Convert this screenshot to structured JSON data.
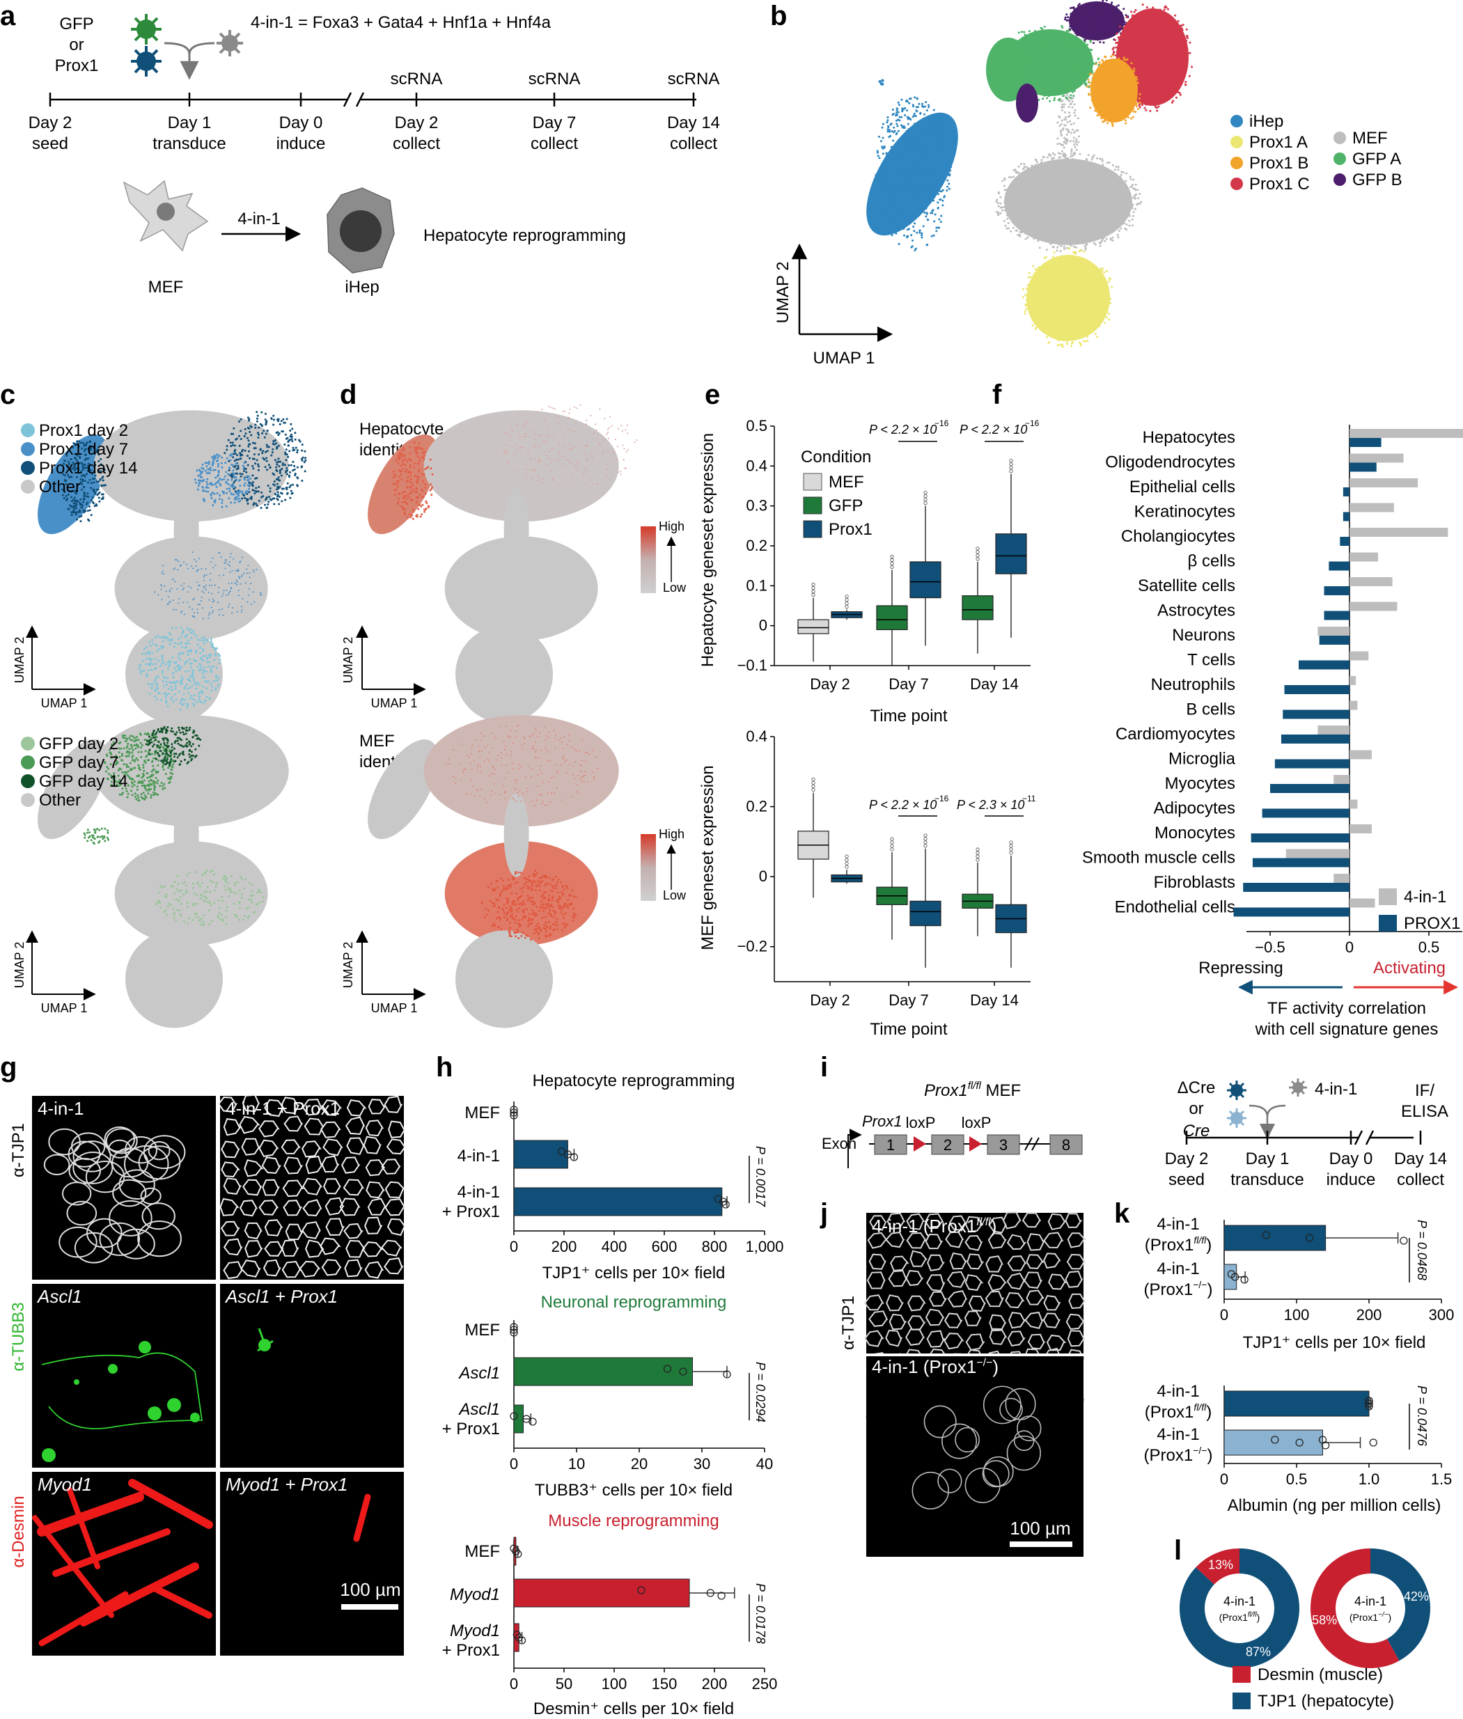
{
  "panel_letters": [
    "a",
    "b",
    "c",
    "d",
    "e",
    "f",
    "g",
    "h",
    "i",
    "j",
    "k",
    "l"
  ],
  "panel_a": {
    "virus_choice": [
      "GFP",
      "or",
      "Prox1"
    ],
    "formula": "4-in-1 = Foxa3 + Gata4 + Hnf1a + Hnf4a",
    "timeline_days": [
      "Day 2",
      "Day 1",
      "Day 0",
      "Day 2",
      "Day 7",
      "Day 14"
    ],
    "timeline_events": [
      "seed",
      "transduce",
      "induce",
      "collect",
      "collect",
      "collect"
    ],
    "scrna_label": "scRNA",
    "arrow_label": "4-in-1",
    "cell_from": "MEF",
    "cell_to": "iHep",
    "process": "Hepatocyte reprogramming"
  },
  "panel_b": {
    "legend": [
      {
        "label": "iHep",
        "color": "#2f86c0"
      },
      {
        "label": "Prox1 A",
        "color": "#ece773"
      },
      {
        "label": "Prox1 B",
        "color": "#f2a32b"
      },
      {
        "label": "Prox1 C",
        "color": "#d2384a"
      },
      {
        "label": "MEF",
        "color": "#bdbdbd"
      },
      {
        "label": "GFP A",
        "color": "#4fb36a"
      },
      {
        "label": "GFP B",
        "color": "#4b1f6b"
      }
    ],
    "axis_y": "UMAP 2",
    "axis_x": "UMAP 1"
  },
  "panel_c": {
    "top_legend": [
      {
        "label": "Prox1 day 2",
        "color": "#7ec4d8"
      },
      {
        "label": "Prox1 day 7",
        "color": "#4a90c8"
      },
      {
        "label": "Prox1 day 14",
        "color": "#0f4f78"
      },
      {
        "label": "Other",
        "color": "#c8c8c8"
      }
    ],
    "bottom_legend": [
      {
        "label": "GFP day 2",
        "color": "#9cc59c"
      },
      {
        "label": "GFP day 7",
        "color": "#4b9a55"
      },
      {
        "label": "GFP day 14",
        "color": "#11522a"
      },
      {
        "label": "Other",
        "color": "#c8c8c8"
      }
    ],
    "axis_y": "UMAP 2",
    "axis_x": "UMAP 1"
  },
  "panel_d": {
    "top_title": [
      "Hepatocyte",
      "identity"
    ],
    "bottom_title": [
      "MEF",
      "identity"
    ],
    "scale_high": "High",
    "scale_low": "Low",
    "axis_y": "UMAP 2",
    "axis_x": "UMAP 1"
  },
  "panel_e": {
    "legend_title": "Condition",
    "conditions": [
      {
        "label": "MEF",
        "color": "#d9d9d9"
      },
      {
        "label": "GFP",
        "color": "#1f7a3a"
      },
      {
        "label": "Prox1",
        "color": "#0f4f78"
      }
    ],
    "xlabel": "Time point",
    "categories": [
      "Day 2",
      "Day 7",
      "Day 14"
    ],
    "top_ylabel": "Hepatocyte geneset expression",
    "top_ticks": [
      "0.5",
      "0.4",
      "0.3",
      "0.2",
      "0.1",
      "0",
      "−0.1"
    ],
    "top_p": [
      "P < 2.2 × 10",
      "−16",
      "P < 2.2 × 10",
      "−16"
    ],
    "bottom_ylabel": "MEF geneset expression",
    "bottom_ticks": [
      "0.4",
      "0.2",
      "0",
      "−0.2"
    ],
    "bottom_p": [
      "P < 2.2 × 10",
      "−16",
      "P < 2.3 × 10",
      "−11"
    ]
  },
  "panel_f": {
    "categories": [
      "Hepatocytes",
      "Oligodendrocytes",
      "Epithelial cells",
      "Keratinocytes",
      "Cholangiocytes",
      "β cells",
      "Satellite cells",
      "Astrocytes",
      "Neurons",
      "T cells",
      "Neutrophils",
      "B cells",
      "Cardiomyocytes",
      "Microglia",
      "Myocytes",
      "Adipocytes",
      "Monocytes",
      "Smooth muscle cells",
      "Fibroblasts",
      "Endothelial cells"
    ],
    "ticks": [
      "−0.5",
      "0",
      "0.5"
    ],
    "legend": [
      {
        "label": "4-in-1",
        "color": "#bdbdbd"
      },
      {
        "label": "PROX1",
        "color": "#0f4f78"
      }
    ],
    "repressing": "Repressing",
    "activating": "Activating",
    "xlabel": [
      "TF activity correlation",
      "with cell signature genes"
    ]
  },
  "panel_g": {
    "row_labels": [
      "α-TJP1",
      "α-TUBB3",
      "α-Desmin"
    ],
    "tiles": [
      "4-in-1",
      "4-in-1 + Prox1",
      "Ascl1",
      "Ascl1 + Prox1",
      "Myod1",
      "Myod1 + Prox1"
    ],
    "scale": "100 µm"
  },
  "panel_h": {
    "hep_title": "Hepatocyte reprogramming",
    "hep_rows": [
      "MEF",
      "4-in-1",
      "4-in-1",
      "+ Prox1"
    ],
    "hep_ticks": [
      "0",
      "200",
      "400",
      "600",
      "800",
      "1,000"
    ],
    "hep_xlabel": "TJP1⁺ cells per 10× field",
    "hep_p": "P = 0.0017",
    "neu_title": "Neuronal reprogramming",
    "neu_rows": [
      "MEF",
      "Ascl1",
      "Ascl1",
      "+ Prox1"
    ],
    "neu_ticks": [
      "0",
      "10",
      "20",
      "30",
      "40"
    ],
    "neu_xlabel": "TUBB3⁺ cells per 10× field",
    "neu_p": "P = 0.0294",
    "mus_title": "Muscle reprogramming",
    "mus_rows": [
      "MEF",
      "Myod1",
      "Myod1",
      "+ Prox1"
    ],
    "mus_ticks": [
      "0",
      "50",
      "100",
      "150",
      "200",
      "250"
    ],
    "mus_xlabel": "Desmin⁺ cells per 10× field",
    "mus_p": "P = 0.0178"
  },
  "panel_i": {
    "title": "Prox1",
    "title_sup": "fl/fl",
    "title_suffix": " MEF",
    "gene": "Prox1",
    "exon_label": "Exon",
    "exons": [
      "1",
      "2",
      "3",
      "8"
    ],
    "loxp": "loxP",
    "virus": [
      "ΔCre",
      "or",
      "Cre"
    ],
    "cocktail": "4-in-1",
    "readout": [
      "IF/",
      "ELISA"
    ],
    "timeline_days": [
      "Day 2",
      "Day 1",
      "Day 0",
      "Day 14"
    ],
    "timeline_events": [
      "seed",
      "transduce",
      "induce",
      "collect"
    ]
  },
  "panel_j": {
    "row_label": "α-TJP1",
    "tiles": [
      "4-in-1 (Prox1",
      "4-in-1 (Prox1"
    ],
    "tile_sups": [
      "fl/fl",
      "−/−"
    ],
    "scale": "100 µm"
  },
  "panel_k": {
    "rows": [
      "4-in-1",
      "(Prox1",
      "4-in-1",
      "(Prox1"
    ],
    "row_sups": [
      "fl/fl",
      "−/−"
    ],
    "top_ticks": [
      "0",
      "100",
      "200",
      "300"
    ],
    "top_xlabel": "TJP1⁺ cells per 10× field",
    "top_p": "P = 0.0468",
    "bottom_ticks": [
      "0",
      "0.5",
      "1.0",
      "1.5"
    ],
    "bottom_xlabel": "Albumin (ng per million cells)",
    "bottom_p": "P = 0.0476"
  },
  "panel_l": {
    "donuts": [
      {
        "label": "4-in-1",
        "sub": "(Prox1",
        "sup": "fl/fl",
        "desmin": 13,
        "tjp1": 87,
        "desmin_text": "13%",
        "tjp1_text": "87%"
      },
      {
        "label": "4-in-1",
        "sub": "(Prox1",
        "sup": "−/−",
        "desmin": 58,
        "tjp1": 42,
        "desmin_text": "58%",
        "tjp1_text": "42%"
      }
    ],
    "legend": [
      {
        "label": "Desmin (muscle)",
        "color": "#c8202f"
      },
      {
        "label": "TJP1 (hepatocyte)",
        "color": "#0f4f78"
      }
    ]
  },
  "chart_data": [
    {
      "type": "box",
      "id": "e-top",
      "ylabel": "Hepatocyte geneset expression",
      "xlabel": "Time point",
      "categories": [
        "Day 2",
        "Day 7",
        "Day 14"
      ],
      "ylim": [
        -0.1,
        0.5
      ],
      "series": [
        {
          "name": "MEF",
          "boxes": [
            {
              "x": "Day 2",
              "q1": -0.02,
              "median": -0.005,
              "q3": 0.015,
              "lo": -0.09,
              "hi": 0.07
            }
          ]
        },
        {
          "name": "GFP",
          "boxes": [
            {
              "x": "Day 7",
              "q1": -0.01,
              "median": 0.015,
              "q3": 0.05,
              "lo": -0.1,
              "hi": 0.14
            },
            {
              "x": "Day 14",
              "q1": 0.015,
              "median": 0.04,
              "q3": 0.075,
              "lo": -0.07,
              "hi": 0.16
            }
          ]
        },
        {
          "name": "Prox1",
          "boxes": [
            {
              "x": "Day 2",
              "q1": 0.02,
              "median": 0.028,
              "q3": 0.035,
              "lo": 0.015,
              "hi": 0.04
            },
            {
              "x": "Day 7",
              "q1": 0.07,
              "median": 0.11,
              "q3": 0.16,
              "lo": -0.05,
              "hi": 0.3
            },
            {
              "x": "Day 14",
              "q1": 0.13,
              "median": 0.175,
              "q3": 0.23,
              "lo": -0.03,
              "hi": 0.38
            }
          ]
        }
      ]
    },
    {
      "type": "box",
      "id": "e-bottom",
      "ylabel": "MEF geneset expression",
      "xlabel": "Time point",
      "categories": [
        "Day 2",
        "Day 7",
        "Day 14"
      ],
      "ylim": [
        -0.3,
        0.4
      ],
      "series": [
        {
          "name": "MEF",
          "boxes": [
            {
              "x": "Day 2",
              "q1": 0.05,
              "median": 0.09,
              "q3": 0.13,
              "lo": -0.06,
              "hi": 0.24
            }
          ]
        },
        {
          "name": "GFP",
          "boxes": [
            {
              "x": "Day 7",
              "q1": -0.08,
              "median": -0.055,
              "q3": -0.03,
              "lo": -0.18,
              "hi": 0.07
            },
            {
              "x": "Day 14",
              "q1": -0.09,
              "median": -0.07,
              "q3": -0.05,
              "lo": -0.17,
              "hi": 0.04
            }
          ]
        },
        {
          "name": "Prox1",
          "boxes": [
            {
              "x": "Day 2",
              "q1": -0.015,
              "median": -0.005,
              "q3": 0.005,
              "lo": -0.02,
              "hi": 0.02
            },
            {
              "x": "Day 7",
              "q1": -0.14,
              "median": -0.1,
              "q3": -0.07,
              "lo": -0.26,
              "hi": 0.08
            },
            {
              "x": "Day 14",
              "q1": -0.16,
              "median": -0.12,
              "q3": -0.08,
              "lo": -0.26,
              "hi": 0.06
            }
          ]
        }
      ]
    },
    {
      "type": "bar",
      "id": "f",
      "orientation": "horizontal",
      "categories": [
        "Hepatocytes",
        "Oligodendrocytes",
        "Epithelial cells",
        "Keratinocytes",
        "Cholangiocytes",
        "β cells",
        "Satellite cells",
        "Astrocytes",
        "Neurons",
        "T cells",
        "Neutrophils",
        "B cells",
        "Cardiomyocytes",
        "Microglia",
        "Myocytes",
        "Adipocytes",
        "Monocytes",
        "Smooth muscle cells",
        "Fibroblasts",
        "Endothelial cells"
      ],
      "xlim": [
        -0.85,
        0.9
      ],
      "series": [
        {
          "name": "4-in-1",
          "values": [
            0.86,
            0.34,
            0.43,
            0.28,
            0.62,
            0.18,
            0.27,
            0.3,
            -0.2,
            0.12,
            0.04,
            0.05,
            -0.2,
            0.14,
            -0.1,
            0.05,
            0.14,
            -0.4,
            -0.1,
            0.16
          ]
        },
        {
          "name": "PROX1",
          "values": [
            0.2,
            0.17,
            -0.04,
            -0.04,
            -0.06,
            -0.13,
            -0.16,
            -0.16,
            -0.19,
            -0.32,
            -0.41,
            -0.42,
            -0.43,
            -0.47,
            -0.5,
            -0.55,
            -0.62,
            -0.61,
            -0.67,
            -0.73
          ]
        }
      ]
    },
    {
      "type": "bar",
      "id": "h-hep",
      "orientation": "horizontal",
      "title": "Hepatocyte reprogramming",
      "categories": [
        "MEF",
        "4-in-1",
        "4-in-1 + Prox1"
      ],
      "values": [
        0,
        215,
        830
      ],
      "errors": [
        0,
        25,
        20
      ],
      "points": [
        [
          0,
          0,
          0
        ],
        [
          190,
          215,
          240
        ],
        [
          815,
          835,
          845
        ]
      ],
      "xlim": [
        0,
        1000
      ],
      "xlabel": "TJP1⁺ cells per 10× field"
    },
    {
      "type": "bar",
      "id": "h-neu",
      "orientation": "horizontal",
      "title": "Neuronal reprogramming",
      "categories": [
        "MEF",
        "Ascl1",
        "Ascl1 + Prox1"
      ],
      "values": [
        0,
        28.5,
        1.5
      ],
      "errors": [
        0,
        5.5,
        1.2
      ],
      "points": [
        [
          0,
          0,
          0
        ],
        [
          24.5,
          27,
          34
        ],
        [
          0,
          2,
          3
        ]
      ],
      "xlim": [
        0,
        40
      ],
      "xlabel": "TUBB3⁺ cells per 10× field"
    },
    {
      "type": "bar",
      "id": "h-mus",
      "orientation": "horizontal",
      "title": "Muscle reprogramming",
      "categories": [
        "MEF",
        "Myod1",
        "Myod1 + Prox1"
      ],
      "values": [
        2,
        175,
        5
      ],
      "errors": [
        2,
        45,
        3
      ],
      "points": [
        [
          0,
          2,
          4
        ],
        [
          127,
          196,
          207
        ],
        [
          3,
          5,
          8
        ]
      ],
      "xlim": [
        0,
        250
      ],
      "xlabel": "Desmin⁺ cells per 10× field"
    },
    {
      "type": "bar",
      "id": "k-top",
      "orientation": "horizontal",
      "categories": [
        "4-in-1 (Prox1 fl/fl)",
        "4-in-1 (Prox1 −/−)"
      ],
      "values": [
        140,
        17
      ],
      "errors": [
        100,
        12
      ],
      "points": [
        [
          58,
          118,
          248
        ],
        [
          10,
          15,
          28
        ]
      ],
      "xlim": [
        0,
        300
      ],
      "xlabel": "TJP1⁺ cells per 10× field"
    },
    {
      "type": "bar",
      "id": "k-bottom",
      "orientation": "horizontal",
      "categories": [
        "4-in-1 (Prox1 fl/fl)",
        "4-in-1 (Prox1 −/−)"
      ],
      "values": [
        1.0,
        0.68
      ],
      "errors": [
        0.01,
        0.26
      ],
      "points": [
        [
          1.0,
          1.0,
          1.0,
          1.0,
          1.0
        ],
        [
          0.35,
          0.52,
          0.7,
          0.68,
          1.03
        ]
      ],
      "xlim": [
        0,
        1.5
      ],
      "xlabel": "Albumin (ng per million cells)"
    },
    {
      "type": "pie",
      "id": "l",
      "series": [
        {
          "name": "4-in-1 (Prox1 fl/fl)",
          "labels": [
            "Desmin (muscle)",
            "TJP1 (hepatocyte)"
          ],
          "values": [
            13,
            87
          ]
        },
        {
          "name": "4-in-1 (Prox1 −/−)",
          "labels": [
            "Desmin (muscle)",
            "TJP1 (hepatocyte)"
          ],
          "values": [
            58,
            42
          ]
        }
      ]
    }
  ]
}
